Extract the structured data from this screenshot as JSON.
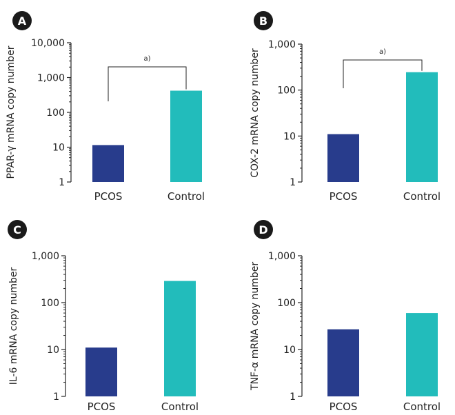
{
  "colors": {
    "pcos": "#283c8c",
    "control": "#22bcbb",
    "axis": "#222222",
    "badge": "#1a1a1a"
  },
  "chart_data": [
    {
      "panel": "A",
      "type": "bar",
      "scale": "log",
      "categories": [
        "PCOS",
        "Control"
      ],
      "values": [
        11.5,
        420
      ],
      "ylabel": "PPAR-γ mRNA copy number",
      "ylim": [
        1,
        10000
      ],
      "yticks": [
        1,
        10,
        100,
        1000,
        10000
      ],
      "yticklabels": [
        "1",
        "10",
        "100",
        "1,000",
        "10,000"
      ],
      "annotation": "a)"
    },
    {
      "panel": "B",
      "type": "bar",
      "scale": "log",
      "categories": [
        "PCOS",
        "Control"
      ],
      "values": [
        11,
        245
      ],
      "ylabel": "COX-2 mRNA copy number",
      "ylim": [
        1,
        1000
      ],
      "yticks": [
        1,
        10,
        100,
        1000
      ],
      "yticklabels": [
        "1",
        "10",
        "100",
        "1,000"
      ],
      "annotation": "a)"
    },
    {
      "panel": "C",
      "type": "bar",
      "scale": "log",
      "categories": [
        "PCOS",
        "Control"
      ],
      "values": [
        11,
        290
      ],
      "ylabel": "IL-6 mRNA copy number",
      "ylim": [
        1,
        1000
      ],
      "yticks": [
        1,
        10,
        100,
        1000
      ],
      "yticklabels": [
        "1",
        "10",
        "100",
        "1,000"
      ],
      "annotation": ""
    },
    {
      "panel": "D",
      "type": "bar",
      "scale": "log",
      "categories": [
        "PCOS",
        "Control"
      ],
      "values": [
        27,
        60
      ],
      "ylabel": "TNF-α mRNA copy number",
      "ylim": [
        1,
        1000
      ],
      "yticks": [
        1,
        10,
        100,
        1000
      ],
      "yticklabels": [
        "1",
        "10",
        "100",
        "1,000"
      ],
      "annotation": ""
    }
  ]
}
